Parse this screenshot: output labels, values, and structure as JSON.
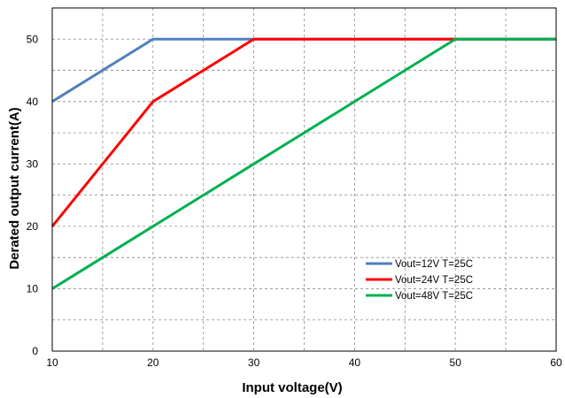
{
  "chart_data": {
    "type": "line",
    "title": "",
    "xlabel": "Input voltage(V)",
    "ylabel": "Derated output current(A)",
    "xlim": [
      10,
      60
    ],
    "ylim": [
      0,
      55
    ],
    "xticks": [
      10,
      20,
      30,
      40,
      50,
      60
    ],
    "yticks": [
      0,
      10,
      20,
      30,
      40,
      50
    ],
    "minor_x_grid": [
      15,
      25,
      35,
      45,
      55
    ],
    "minor_y_grid": [
      5,
      15,
      25,
      35,
      45
    ],
    "grid": true,
    "legend_position": "lower-right",
    "series": [
      {
        "name": "Vout=12V T=25C",
        "color": "#4f81bd",
        "x": [
          10,
          20,
          60
        ],
        "y": [
          40,
          50,
          50
        ]
      },
      {
        "name": "Vout=24V T=25C",
        "color": "#ff0000",
        "x": [
          10,
          20,
          30,
          60
        ],
        "y": [
          20,
          40,
          50,
          50
        ]
      },
      {
        "name": "Vout=48V T=25C",
        "color": "#00b050",
        "x": [
          10,
          50,
          60
        ],
        "y": [
          10,
          50,
          50
        ]
      }
    ]
  }
}
